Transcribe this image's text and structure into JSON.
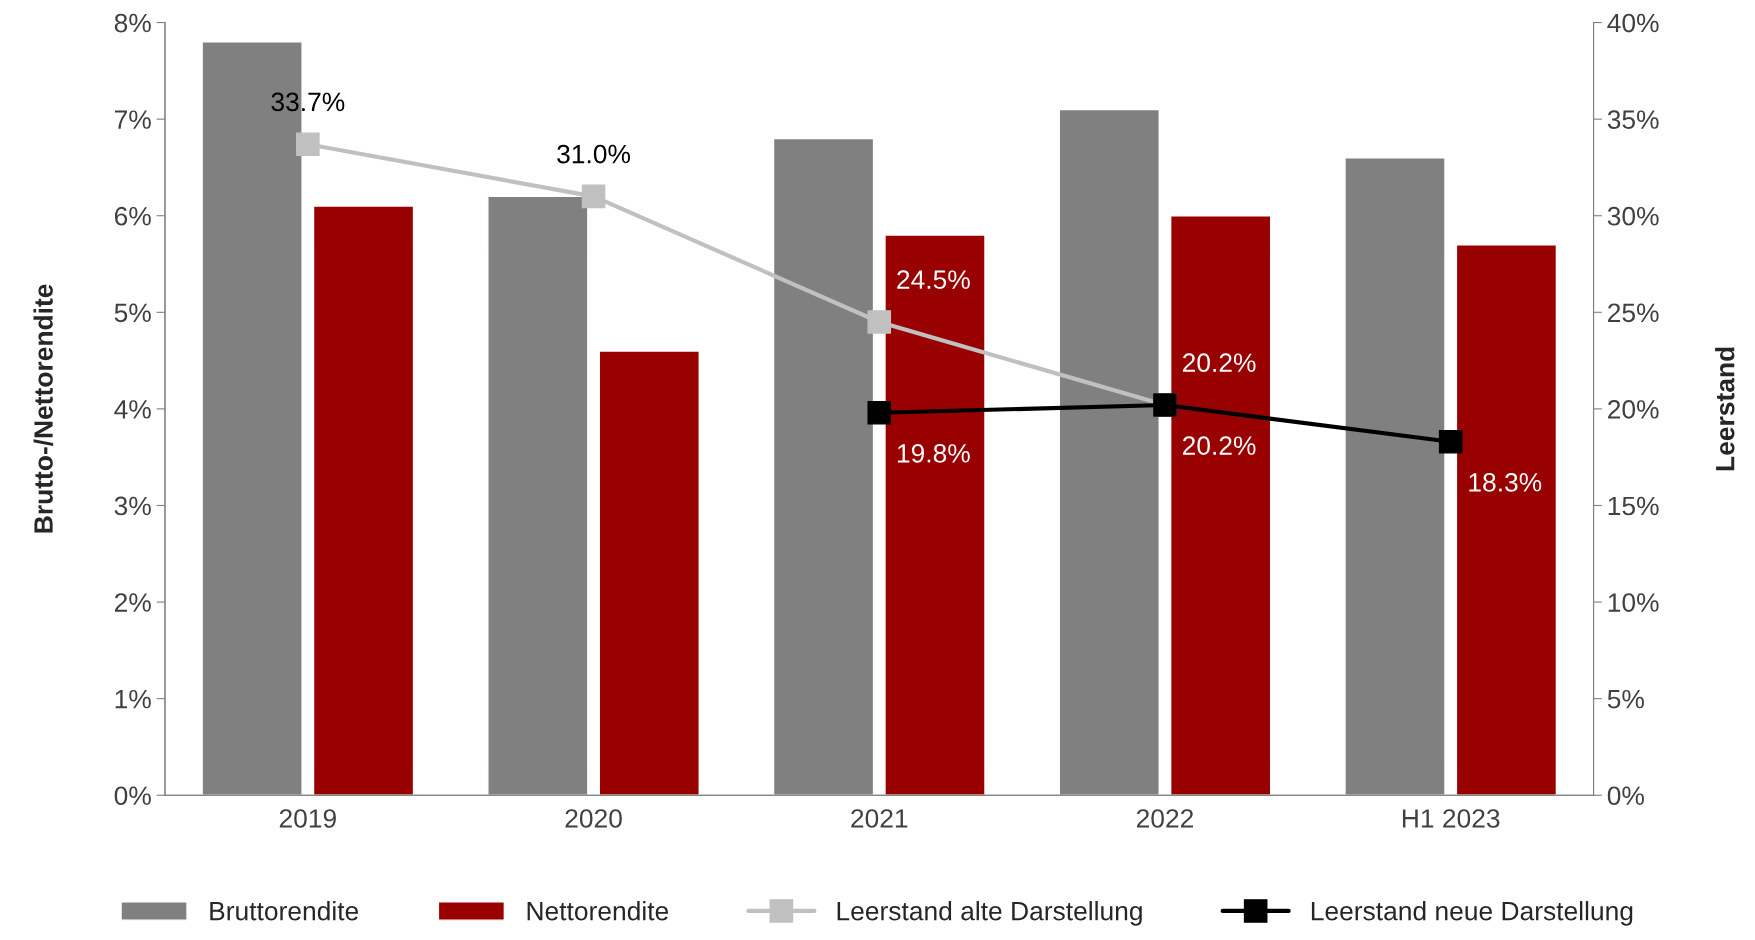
{
  "chart_data": {
    "type": "bar",
    "categories": [
      "2019",
      "2020",
      "2021",
      "2022",
      "H1 2023"
    ],
    "ylabel": "Brutto-/Nettorendite",
    "y2label": "Leerstand",
    "series": [
      {
        "name": "Bruttorendite",
        "color": "#808080",
        "values": [
          7.8,
          6.2,
          6.8,
          7.1,
          6.6
        ]
      },
      {
        "name": "Nettorendite",
        "color": "#990000",
        "values": [
          6.1,
          4.6,
          5.8,
          6.0,
          5.7
        ]
      },
      {
        "name": "Leerstand alte Darstellung",
        "type": "line",
        "axis": "y2",
        "color": "#c0c0c0",
        "marker": "square",
        "values": [
          33.7,
          31.0,
          24.5,
          20.2,
          null
        ],
        "value_labels": [
          "33.7%",
          "31.0%",
          "24.5%",
          "20.2%",
          null
        ]
      },
      {
        "name": "Leerstand neue Darstellung",
        "type": "line",
        "axis": "y2",
        "color": "#000000",
        "marker": "square",
        "values": [
          null,
          null,
          19.8,
          20.2,
          18.3
        ],
        "value_labels": [
          null,
          null,
          "19.8%",
          "20.2%",
          "18.3%"
        ]
      }
    ],
    "ylim": [
      0,
      8
    ],
    "yticks": [
      {
        "value": 0,
        "label": "0%"
      },
      {
        "value": 1,
        "label": "1%"
      },
      {
        "value": 2,
        "label": "2%"
      },
      {
        "value": 3,
        "label": "3%"
      },
      {
        "value": 4,
        "label": "4%"
      },
      {
        "value": 5,
        "label": "5%"
      },
      {
        "value": 6,
        "label": "6%"
      },
      {
        "value": 7,
        "label": "7%"
      },
      {
        "value": 8,
        "label": "8%"
      }
    ],
    "y2lim": [
      0,
      40
    ],
    "y2ticks": [
      {
        "value": 0,
        "label": "0%"
      },
      {
        "value": 5,
        "label": "5%"
      },
      {
        "value": 10,
        "label": "10%"
      },
      {
        "value": 15,
        "label": "15%"
      },
      {
        "value": 20,
        "label": "20%"
      },
      {
        "value": 25,
        "label": "25%"
      },
      {
        "value": 30,
        "label": "30%"
      },
      {
        "value": 35,
        "label": "35%"
      },
      {
        "value": 40,
        "label": "40%"
      }
    ],
    "grid": false,
    "legend": "bottom",
    "line_style": "solid"
  }
}
